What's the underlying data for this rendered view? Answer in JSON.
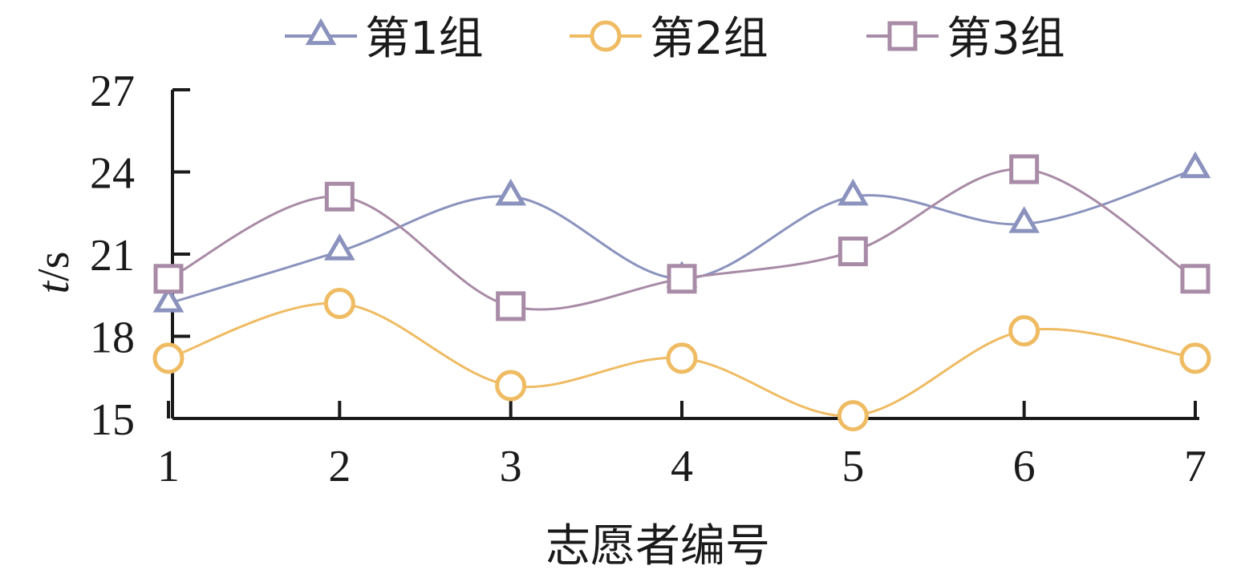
{
  "chart_data": {
    "type": "line",
    "smooth": true,
    "categories": [
      "1",
      "2",
      "3",
      "4",
      "5",
      "6",
      "7"
    ],
    "series": [
      {
        "name": "第1组",
        "marker": "triangle",
        "color": "#8a92bd",
        "values": [
          19.2,
          21.1,
          23.1,
          20.1,
          23.1,
          22.1,
          24.1
        ]
      },
      {
        "name": "第2组",
        "marker": "circle",
        "color": "#efbb63",
        "values": [
          17.2,
          19.2,
          16.2,
          17.2,
          15.1,
          18.2,
          17.2
        ]
      },
      {
        "name": "第3组",
        "marker": "square",
        "color": "#a88ba6",
        "values": [
          20.1,
          23.1,
          19.1,
          20.1,
          21.1,
          24.1,
          20.1
        ]
      }
    ],
    "xlabel": "志愿者编号",
    "ylabel_italic": "t",
    "ylabel_unit": "/s",
    "ylim": [
      15,
      27
    ],
    "yticks": [
      "15",
      "18",
      "21",
      "24",
      "27"
    ],
    "grid": false,
    "legend_position": "top"
  }
}
